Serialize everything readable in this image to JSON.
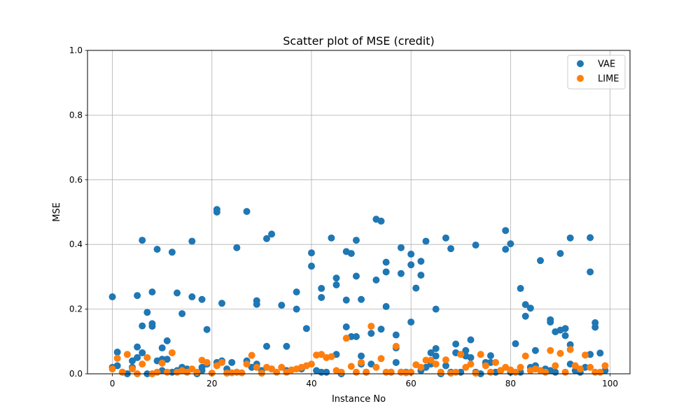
{
  "chart_data": {
    "type": "scatter",
    "title": "Scatter plot of MSE (credit)",
    "xlabel": "Instance No",
    "ylabel": "MSE",
    "xlim": [
      -5,
      104
    ],
    "ylim": [
      0,
      1.0
    ],
    "xticks": [
      "0",
      "20",
      "40",
      "60",
      "80",
      "100"
    ],
    "yticks": [
      "0.0",
      "0.2",
      "0.4",
      "0.6",
      "0.8",
      "1.0"
    ],
    "grid": true,
    "legend_position": "top-right",
    "series": [
      {
        "name": "VAE",
        "color": "#1f77b4",
        "points": [
          [
            0,
            0.238
          ],
          [
            0,
            0.02
          ],
          [
            1,
            0.067
          ],
          [
            1,
            0.025
          ],
          [
            2,
            0.005
          ],
          [
            3,
            0.0
          ],
          [
            4,
            0.04
          ],
          [
            4,
            0.02
          ],
          [
            5,
            0.242
          ],
          [
            5,
            0.083
          ],
          [
            5,
            0.05
          ],
          [
            6,
            0.413
          ],
          [
            6,
            0.148
          ],
          [
            6,
            0.065
          ],
          [
            7,
            0.19
          ],
          [
            7,
            0.0
          ],
          [
            8,
            0.253
          ],
          [
            8,
            0.155
          ],
          [
            8,
            0.147
          ],
          [
            9,
            0.385
          ],
          [
            9,
            0.04
          ],
          [
            10,
            0.08
          ],
          [
            10,
            0.045
          ],
          [
            10,
            0.01
          ],
          [
            11,
            0.102
          ],
          [
            11,
            0.045
          ],
          [
            12,
            0.376
          ],
          [
            12,
            0.005
          ],
          [
            13,
            0.25
          ],
          [
            13,
            0.01
          ],
          [
            14,
            0.186
          ],
          [
            14,
            0.02
          ],
          [
            15,
            0.015
          ],
          [
            16,
            0.41
          ],
          [
            16,
            0.238
          ],
          [
            17,
            0.0
          ],
          [
            18,
            0.23
          ],
          [
            18,
            0.02
          ],
          [
            18,
            0.01
          ],
          [
            19,
            0.137
          ],
          [
            19,
            0.03
          ],
          [
            21,
            0.508
          ],
          [
            21,
            0.5
          ],
          [
            21,
            0.035
          ],
          [
            22,
            0.218
          ],
          [
            22,
            0.04
          ],
          [
            23,
            0.015
          ],
          [
            24,
            0.035
          ],
          [
            25,
            0.39
          ],
          [
            25,
            0.005
          ],
          [
            27,
            0.502
          ],
          [
            27,
            0.04
          ],
          [
            28,
            0.02
          ],
          [
            29,
            0.226
          ],
          [
            29,
            0.215
          ],
          [
            29,
            0.03
          ],
          [
            30,
            0.01
          ],
          [
            31,
            0.418
          ],
          [
            31,
            0.085
          ],
          [
            32,
            0.432
          ],
          [
            32,
            0.015
          ],
          [
            34,
            0.212
          ],
          [
            35,
            0.085
          ],
          [
            35,
            0.01
          ],
          [
            37,
            0.253
          ],
          [
            37,
            0.2
          ],
          [
            38,
            0.015
          ],
          [
            39,
            0.14
          ],
          [
            40,
            0.374
          ],
          [
            40,
            0.333
          ],
          [
            41,
            0.01
          ],
          [
            42,
            0.264
          ],
          [
            42,
            0.236
          ],
          [
            42,
            0.005
          ],
          [
            43,
            0.005
          ],
          [
            44,
            0.42
          ],
          [
            45,
            0.296
          ],
          [
            45,
            0.275
          ],
          [
            45,
            0.06
          ],
          [
            46,
            0.0
          ],
          [
            47,
            0.378
          ],
          [
            47,
            0.228
          ],
          [
            47,
            0.145
          ],
          [
            48,
            0.372
          ],
          [
            48,
            0.115
          ],
          [
            49,
            0.413
          ],
          [
            49,
            0.302
          ],
          [
            49,
            0.115
          ],
          [
            50,
            0.23
          ],
          [
            50,
            0.055
          ],
          [
            50,
            0.03
          ],
          [
            51,
            0.005
          ],
          [
            52,
            0.125
          ],
          [
            52,
            0.03
          ],
          [
            53,
            0.478
          ],
          [
            53,
            0.29
          ],
          [
            54,
            0.472
          ],
          [
            54,
            0.138
          ],
          [
            55,
            0.345
          ],
          [
            55,
            0.315
          ],
          [
            55,
            0.208
          ],
          [
            56,
            0.005
          ],
          [
            57,
            0.12
          ],
          [
            57,
            0.08
          ],
          [
            57,
            0.035
          ],
          [
            58,
            0.39
          ],
          [
            58,
            0.31
          ],
          [
            58,
            0.005
          ],
          [
            59,
            0.005
          ],
          [
            60,
            0.37
          ],
          [
            60,
            0.337
          ],
          [
            60,
            0.16
          ],
          [
            61,
            0.265
          ],
          [
            62,
            0.348
          ],
          [
            62,
            0.305
          ],
          [
            62,
            0.01
          ],
          [
            63,
            0.41
          ],
          [
            63,
            0.02
          ],
          [
            64,
            0.065
          ],
          [
            64,
            0.03
          ],
          [
            65,
            0.2
          ],
          [
            65,
            0.078
          ],
          [
            65,
            0.055
          ],
          [
            66,
            0.0
          ],
          [
            67,
            0.42
          ],
          [
            67,
            0.025
          ],
          [
            68,
            0.387
          ],
          [
            68,
            0.005
          ],
          [
            69,
            0.092
          ],
          [
            69,
            0.065
          ],
          [
            70,
            0.005
          ],
          [
            71,
            0.072
          ],
          [
            71,
            0.055
          ],
          [
            72,
            0.105
          ],
          [
            72,
            0.05
          ],
          [
            73,
            0.398
          ],
          [
            73,
            0.005
          ],
          [
            74,
            0.0
          ],
          [
            75,
            0.035
          ],
          [
            75,
            0.03
          ],
          [
            76,
            0.056
          ],
          [
            76,
            0.035
          ],
          [
            77,
            0.005
          ],
          [
            78,
            0.01
          ],
          [
            79,
            0.443
          ],
          [
            79,
            0.385
          ],
          [
            80,
            0.402
          ],
          [
            80,
            0.005
          ],
          [
            81,
            0.093
          ],
          [
            82,
            0.264
          ],
          [
            82,
            0.005
          ],
          [
            83,
            0.214
          ],
          [
            83,
            0.178
          ],
          [
            84,
            0.203
          ],
          [
            84,
            0.02
          ],
          [
            85,
            0.072
          ],
          [
            85,
            0.025
          ],
          [
            86,
            0.35
          ],
          [
            86,
            0.01
          ],
          [
            87,
            0.015
          ],
          [
            88,
            0.167
          ],
          [
            88,
            0.16
          ],
          [
            88,
            0.01
          ],
          [
            89,
            0.13
          ],
          [
            89,
            0.005
          ],
          [
            90,
            0.372
          ],
          [
            90,
            0.135
          ],
          [
            91,
            0.14
          ],
          [
            91,
            0.118
          ],
          [
            92,
            0.42
          ],
          [
            92,
            0.09
          ],
          [
            92,
            0.03
          ],
          [
            93,
            0.01
          ],
          [
            94,
            0.005
          ],
          [
            95,
            0.02
          ],
          [
            96,
            0.421
          ],
          [
            96,
            0.315
          ],
          [
            96,
            0.06
          ],
          [
            97,
            0.158
          ],
          [
            97,
            0.144
          ],
          [
            98,
            0.064
          ],
          [
            99,
            0.01
          ]
        ]
      },
      {
        "name": "LIME",
        "color": "#ff7f0e",
        "points": [
          [
            0,
            0.015
          ],
          [
            1,
            0.048
          ],
          [
            2,
            0.005
          ],
          [
            3,
            0.06
          ],
          [
            4,
            0.015
          ],
          [
            5,
            0.0
          ],
          [
            6,
            0.03
          ],
          [
            7,
            0.05
          ],
          [
            8,
            0.0
          ],
          [
            9,
            0.005
          ],
          [
            10,
            0.033
          ],
          [
            11,
            0.005
          ],
          [
            12,
            0.065
          ],
          [
            13,
            0.005
          ],
          [
            14,
            0.01
          ],
          [
            15,
            0.005
          ],
          [
            16,
            0.015
          ],
          [
            17,
            0.005
          ],
          [
            18,
            0.042
          ],
          [
            19,
            0.035
          ],
          [
            20,
            0.002
          ],
          [
            21,
            0.025
          ],
          [
            22,
            0.035
          ],
          [
            23,
            0.002
          ],
          [
            24,
            0.003
          ],
          [
            25,
            0.005
          ],
          [
            26,
            0.003
          ],
          [
            27,
            0.03
          ],
          [
            28,
            0.057
          ],
          [
            29,
            0.02
          ],
          [
            30,
            0.002
          ],
          [
            31,
            0.02
          ],
          [
            32,
            0.015
          ],
          [
            33,
            0.005
          ],
          [
            34,
            0.02
          ],
          [
            35,
            0.005
          ],
          [
            36,
            0.012
          ],
          [
            37,
            0.015
          ],
          [
            38,
            0.02
          ],
          [
            39,
            0.025
          ],
          [
            40,
            0.03
          ],
          [
            41,
            0.058
          ],
          [
            42,
            0.06
          ],
          [
            43,
            0.05
          ],
          [
            44,
            0.053
          ],
          [
            45,
            0.01
          ],
          [
            46,
            0.005
          ],
          [
            47,
            0.11
          ],
          [
            48,
            0.023
          ],
          [
            49,
            0.005
          ],
          [
            50,
            0.035
          ],
          [
            51,
            0.005
          ],
          [
            52,
            0.147
          ],
          [
            53,
            0.02
          ],
          [
            54,
            0.047
          ],
          [
            55,
            0.005
          ],
          [
            56,
            0.005
          ],
          [
            57,
            0.085
          ],
          [
            58,
            0.005
          ],
          [
            59,
            0.003
          ],
          [
            60,
            0.005
          ],
          [
            61,
            0.028
          ],
          [
            62,
            0.02
          ],
          [
            63,
            0.042
          ],
          [
            64,
            0.042
          ],
          [
            65,
            0.03
          ],
          [
            66,
            0.005
          ],
          [
            67,
            0.043
          ],
          [
            68,
            0.002
          ],
          [
            69,
            0.005
          ],
          [
            70,
            0.06
          ],
          [
            71,
            0.02
          ],
          [
            72,
            0.03
          ],
          [
            73,
            0.002
          ],
          [
            74,
            0.06
          ],
          [
            75,
            0.025
          ],
          [
            76,
            0.005
          ],
          [
            77,
            0.035
          ],
          [
            78,
            0.01
          ],
          [
            79,
            0.02
          ],
          [
            80,
            0.012
          ],
          [
            81,
            0.005
          ],
          [
            82,
            0.02
          ],
          [
            83,
            0.055
          ],
          [
            84,
            0.01
          ],
          [
            85,
            0.015
          ],
          [
            86,
            0.01
          ],
          [
            87,
            0.005
          ],
          [
            88,
            0.072
          ],
          [
            89,
            0.025
          ],
          [
            90,
            0.063
          ],
          [
            91,
            0.005
          ],
          [
            92,
            0.075
          ],
          [
            93,
            0.025
          ],
          [
            94,
            0.015
          ],
          [
            95,
            0.058
          ],
          [
            96,
            0.02
          ],
          [
            97,
            0.005
          ],
          [
            98,
            0.005
          ],
          [
            99,
            0.025
          ]
        ]
      }
    ]
  }
}
